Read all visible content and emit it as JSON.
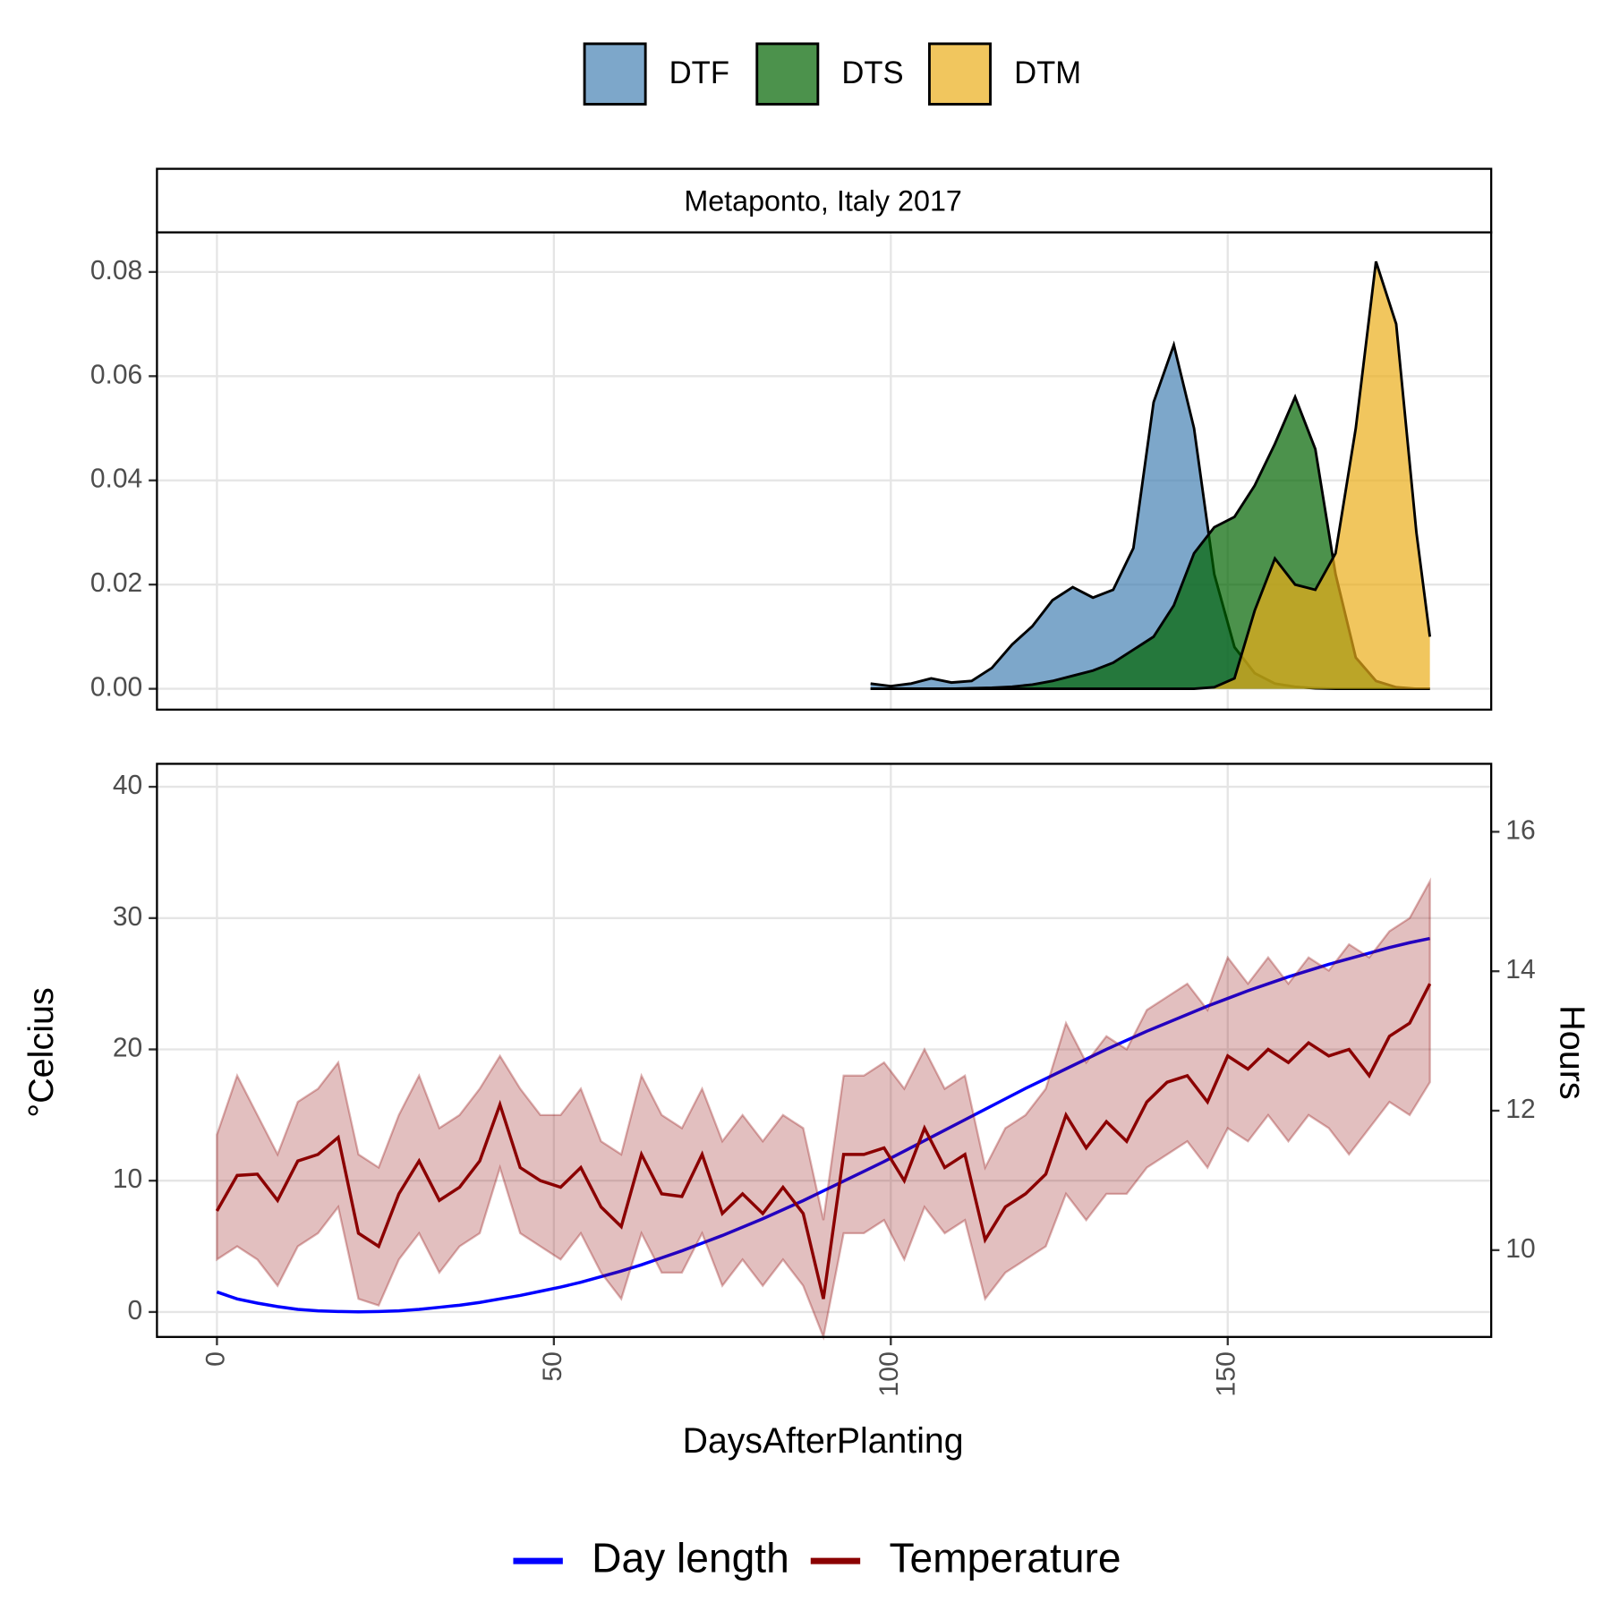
{
  "chart_data": [
    {
      "type": "density",
      "title": "Metaponto, Italy 2017",
      "opacity": 0.7,
      "x": [
        97,
        100,
        103,
        106,
        109,
        112,
        115,
        118,
        121,
        124,
        127,
        130,
        133,
        136,
        139,
        142,
        145,
        148,
        151,
        154,
        157,
        160,
        163,
        166,
        169,
        172,
        175,
        178,
        180
      ],
      "series": [
        {
          "name": "DTF",
          "color": "#4682b4",
          "values": [
            0.001,
            0.0005,
            0.001,
            0.002,
            0.0012,
            0.0015,
            0.004,
            0.0085,
            0.012,
            0.017,
            0.0195,
            0.0175,
            0.019,
            0.027,
            0.055,
            0.066,
            0.05,
            0.022,
            0.008,
            0.003,
            0.001,
            0.0004,
            0.0001,
            0,
            0,
            0,
            0,
            0,
            0
          ]
        },
        {
          "name": "DTS",
          "color": "#006400",
          "values": [
            0,
            0,
            0,
            0,
            0,
            0.0001,
            0.0002,
            0.0004,
            0.0008,
            0.0015,
            0.0025,
            0.0035,
            0.005,
            0.0075,
            0.01,
            0.016,
            0.026,
            0.031,
            0.033,
            0.039,
            0.047,
            0.056,
            0.046,
            0.022,
            0.006,
            0.0015,
            0.0003,
            0,
            0
          ]
        },
        {
          "name": "DTM",
          "color": "#ebae1a",
          "values": [
            0,
            0,
            0,
            0,
            0,
            0,
            0,
            0,
            0,
            0,
            0,
            0,
            0,
            0,
            0,
            0,
            0,
            0.0003,
            0.002,
            0.015,
            0.025,
            0.02,
            0.019,
            0.026,
            0.05,
            0.082,
            0.07,
            0.03,
            0.01
          ]
        }
      ],
      "xlim": [
        -8.9,
        189.1
      ],
      "xticks": [
        0,
        50,
        100,
        150
      ],
      "ylim": [
        -0.004,
        0.0876
      ],
      "yticks": [
        {
          "value": 0,
          "label": "0.00"
        },
        0.02,
        0.04,
        0.06,
        0.08
      ],
      "grid": true
    },
    {
      "type": "line",
      "x_label": "DaysAfterPlanting",
      "y_label": "°Celcius",
      "y2_label": "Hours",
      "x": [
        0,
        3,
        6,
        9,
        12,
        15,
        18,
        21,
        24,
        27,
        30,
        33,
        36,
        39,
        42,
        45,
        48,
        51,
        54,
        57,
        60,
        63,
        66,
        69,
        72,
        75,
        78,
        81,
        84,
        87,
        90,
        93,
        96,
        99,
        102,
        105,
        108,
        111,
        114,
        117,
        120,
        123,
        126,
        129,
        132,
        135,
        138,
        141,
        144,
        147,
        150,
        153,
        156,
        159,
        162,
        165,
        168,
        171,
        174,
        177,
        180
      ],
      "series": [
        {
          "name": "Day length",
          "color": "#0000ff",
          "axis": "y2",
          "values": [
            9.4,
            9.3,
            9.24,
            9.19,
            9.15,
            9.13,
            9.12,
            9.115,
            9.12,
            9.13,
            9.15,
            9.18,
            9.21,
            9.25,
            9.3,
            9.35,
            9.41,
            9.47,
            9.54,
            9.62,
            9.7,
            9.79,
            9.89,
            9.99,
            10.1,
            10.21,
            10.33,
            10.45,
            10.58,
            10.71,
            10.85,
            10.99,
            11.13,
            11.27,
            11.42,
            11.57,
            11.72,
            11.87,
            12.02,
            12.17,
            12.32,
            12.46,
            12.6,
            12.74,
            12.88,
            13.01,
            13.14,
            13.26,
            13.38,
            13.5,
            13.61,
            13.72,
            13.82,
            13.92,
            14.01,
            14.1,
            14.18,
            14.26,
            14.34,
            14.41,
            14.47
          ]
        },
        {
          "name": "Temperature",
          "color": "#8b0000",
          "values": [
            7.7,
            10.4,
            10.5,
            8.5,
            11.5,
            12,
            13.3,
            6,
            5,
            9,
            11.5,
            8.5,
            9.5,
            11.5,
            15.8,
            11,
            10,
            9.5,
            11,
            8,
            6.5,
            12,
            9,
            8.8,
            12,
            7.5,
            9,
            7.5,
            9.5,
            7.5,
            1,
            12,
            12,
            12.5,
            10,
            14,
            11,
            12,
            5.5,
            8,
            9,
            10.5,
            15,
            12.5,
            14.5,
            13,
            16,
            17.5,
            18,
            16,
            19.5,
            18.5,
            20,
            19,
            20.5,
            19.5,
            20,
            18,
            21,
            22,
            25
          ],
          "low": [
            4,
            5,
            4,
            2,
            5,
            6,
            8,
            1,
            0.5,
            4,
            6,
            3,
            5,
            6,
            11,
            6,
            5,
            4,
            6,
            3,
            1,
            6,
            3,
            3,
            6,
            2,
            4,
            2,
            4,
            2,
            -1.9,
            6,
            6,
            7,
            4,
            8,
            6,
            7,
            1,
            3,
            4,
            5,
            9,
            7,
            9,
            9,
            11,
            12,
            13,
            11,
            14,
            13,
            15,
            13,
            15,
            14,
            12,
            14,
            16,
            15,
            17.5
          ],
          "high": [
            13.5,
            18,
            15,
            12,
            16,
            17,
            19,
            12,
            11,
            15,
            18,
            14,
            15,
            17,
            19.5,
            17,
            15,
            15,
            17,
            13,
            12,
            18,
            15,
            14,
            17,
            13,
            15,
            13,
            15,
            14,
            7,
            18,
            18,
            19,
            17,
            20,
            17,
            18,
            11,
            14,
            15,
            17,
            22,
            19,
            21,
            20,
            23,
            24,
            25,
            23,
            27,
            25,
            27,
            25,
            27,
            26,
            28,
            27,
            29,
            30,
            32.8
          ]
        }
      ],
      "xlim": [
        -8.9,
        189.1
      ],
      "xticks": [
        0,
        50,
        100,
        150
      ],
      "ylim": [
        -1.9,
        41.75
      ],
      "yticks": [
        0,
        10,
        20,
        30,
        40
      ],
      "y2lim": [
        8.755,
        16.975
      ],
      "y2ticks": [
        10,
        12,
        14,
        16
      ],
      "grid": true
    }
  ]
}
